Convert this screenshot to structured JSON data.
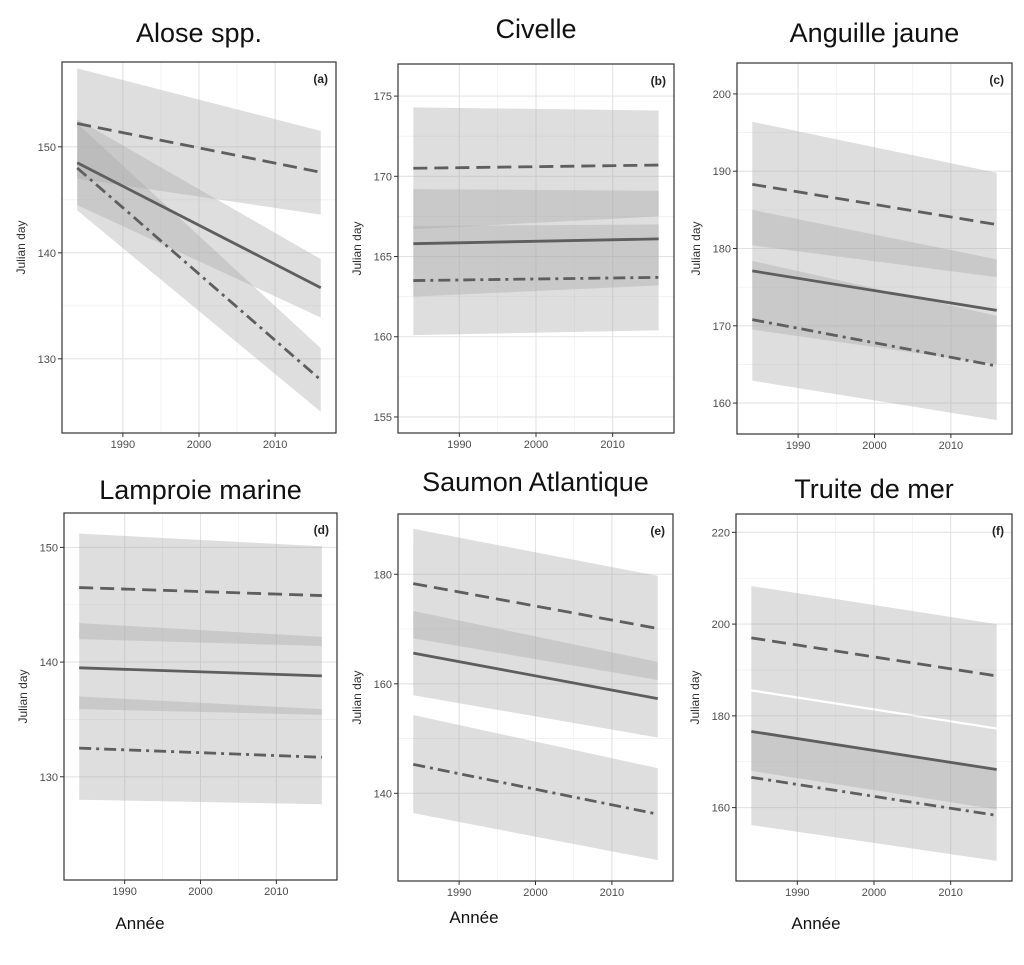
{
  "x_axis_label": "Année",
  "y_axis_label": "Julian day",
  "chart_data": [
    {
      "type": "line",
      "title": "Alose spp.",
      "tag": "(a)",
      "xlabel": "",
      "ylabel": "Julian day",
      "xlim": [
        1982,
        2018
      ],
      "ylim": [
        123,
        158
      ],
      "xticks": [
        1990,
        2000,
        2010
      ],
      "yticks": [
        130,
        140,
        150
      ],
      "grid": true,
      "series": [
        {
          "style": "dashed",
          "x": [
            1984,
            2016
          ],
          "y": [
            152.2,
            147.6
          ],
          "ci_lower": [
            147.0,
            143.6
          ],
          "ci_upper": [
            157.4,
            151.5
          ]
        },
        {
          "style": "solid",
          "x": [
            1984,
            2016
          ],
          "y": [
            148.5,
            136.7
          ],
          "ci_lower": [
            144.5,
            133.9
          ],
          "ci_upper": [
            152.6,
            139.4
          ]
        },
        {
          "style": "dashdot",
          "x": [
            1984,
            2016
          ],
          "y": [
            148.0,
            128.0
          ],
          "ci_lower": [
            144.0,
            125.0
          ],
          "ci_upper": [
            152.2,
            131.0
          ]
        }
      ]
    },
    {
      "type": "line",
      "title": "Civelle",
      "tag": "(b)",
      "xlabel": "",
      "ylabel": "Julian day",
      "xlim": [
        1982,
        2018
      ],
      "ylim": [
        154,
        177
      ],
      "xticks": [
        1990,
        2000,
        2010
      ],
      "yticks": [
        155,
        160,
        165,
        170,
        175
      ],
      "grid": true,
      "series": [
        {
          "style": "dashed",
          "x": [
            1984,
            2016
          ],
          "y": [
            170.5,
            170.7
          ],
          "ci_lower": [
            166.7,
            167.5
          ],
          "ci_upper": [
            174.3,
            174.1
          ]
        },
        {
          "style": "solid",
          "x": [
            1984,
            2016
          ],
          "y": [
            165.8,
            166.1
          ],
          "ci_lower": [
            162.5,
            163.2
          ],
          "ci_upper": [
            169.2,
            169.1
          ]
        },
        {
          "style": "dashdot",
          "x": [
            1984,
            2016
          ],
          "y": [
            163.5,
            163.7
          ],
          "ci_lower": [
            160.1,
            160.4
          ],
          "ci_upper": [
            166.9,
            167.0
          ]
        }
      ]
    },
    {
      "type": "line",
      "title": "Anguille jaune",
      "tag": "(c)",
      "xlabel": "",
      "ylabel": "Julian day",
      "xlim": [
        1982,
        2018
      ],
      "ylim": [
        156,
        204
      ],
      "xticks": [
        1990,
        2000,
        2010
      ],
      "yticks": [
        160,
        170,
        180,
        190,
        200
      ],
      "grid": true,
      "series": [
        {
          "style": "dashed",
          "x": [
            1984,
            2016
          ],
          "y": [
            188.3,
            183.1
          ],
          "ci_lower": [
            180.4,
            176.3
          ],
          "ci_upper": [
            196.4,
            189.8
          ]
        },
        {
          "style": "solid",
          "x": [
            1984,
            2016
          ],
          "y": [
            177.1,
            172.0
          ],
          "ci_lower": [
            169.5,
            165.0
          ],
          "ci_upper": [
            185.0,
            178.6
          ]
        },
        {
          "style": "dashdot",
          "x": [
            1984,
            2016
          ],
          "y": [
            170.8,
            164.8
          ],
          "ci_lower": [
            162.9,
            157.8
          ],
          "ci_upper": [
            178.4,
            171.3
          ]
        }
      ]
    },
    {
      "type": "line",
      "title": "Lamproie marine",
      "tag": "(d)",
      "xlabel": "Année",
      "ylabel": "Julian day",
      "xlim": [
        1982,
        2018
      ],
      "ylim": [
        121,
        153
      ],
      "xticks": [
        1990,
        2000,
        2010
      ],
      "yticks": [
        130,
        140,
        150
      ],
      "grid": true,
      "series": [
        {
          "style": "dashed",
          "x": [
            1984,
            2016
          ],
          "y": [
            146.5,
            145.8
          ],
          "ci_lower": [
            142.0,
            141.4
          ],
          "ci_upper": [
            151.2,
            150.1
          ]
        },
        {
          "style": "solid",
          "x": [
            1984,
            2016
          ],
          "y": [
            139.5,
            138.8
          ],
          "ci_lower": [
            135.9,
            135.4
          ],
          "ci_upper": [
            143.4,
            142.2
          ]
        },
        {
          "style": "dashdot",
          "x": [
            1984,
            2016
          ],
          "y": [
            132.5,
            131.7
          ],
          "ci_lower": [
            128.0,
            127.6
          ],
          "ci_upper": [
            137.0,
            135.9
          ]
        }
      ]
    },
    {
      "type": "line",
      "title": "Saumon Atlantique",
      "tag": "(e)",
      "xlabel": "Année",
      "ylabel": "Julian day",
      "xlim": [
        1982,
        2018
      ],
      "ylim": [
        124,
        191
      ],
      "xticks": [
        1990,
        2000,
        2010
      ],
      "yticks": [
        140,
        160,
        180
      ],
      "grid": true,
      "series": [
        {
          "style": "dashed",
          "x": [
            1984,
            2016
          ],
          "y": [
            178.3,
            170.1
          ],
          "ci_lower": [
            168.3,
            160.7
          ],
          "ci_upper": [
            188.3,
            179.7
          ]
        },
        {
          "style": "solid",
          "x": [
            1984,
            2016
          ],
          "y": [
            165.6,
            157.3
          ],
          "ci_lower": [
            157.9,
            150.2
          ],
          "ci_upper": [
            173.3,
            164.0
          ]
        },
        {
          "style": "dashdot",
          "x": [
            1984,
            2016
          ],
          "y": [
            145.3,
            136.2
          ],
          "ci_lower": [
            136.4,
            127.8
          ],
          "ci_upper": [
            154.3,
            144.6
          ]
        }
      ]
    },
    {
      "type": "line",
      "title": "Truite de mer",
      "tag": "(f)",
      "xlabel": "Année",
      "ylabel": "Julian day",
      "xlim": [
        1982,
        2018
      ],
      "ylim": [
        144,
        224
      ],
      "xticks": [
        1990,
        2000,
        2010
      ],
      "yticks": [
        160,
        180,
        200,
        220
      ],
      "grid": true,
      "series": [
        {
          "style": "dashed",
          "x": [
            1984,
            2016
          ],
          "y": [
            197.0,
            188.7
          ],
          "ci_lower": [
            185.8,
            177.5
          ],
          "ci_upper": [
            208.3,
            200.0
          ]
        },
        {
          "style": "solid",
          "x": [
            1984,
            2016
          ],
          "y": [
            176.6,
            168.3
          ],
          "ci_lower": [
            168.0,
            159.6
          ],
          "ci_upper": [
            185.3,
            177.0
          ]
        },
        {
          "style": "dashdot",
          "x": [
            1984,
            2016
          ],
          "y": [
            166.6,
            158.3
          ],
          "ci_lower": [
            156.2,
            148.4
          ],
          "ci_upper": [
            176.9,
            168.0
          ]
        }
      ]
    }
  ]
}
